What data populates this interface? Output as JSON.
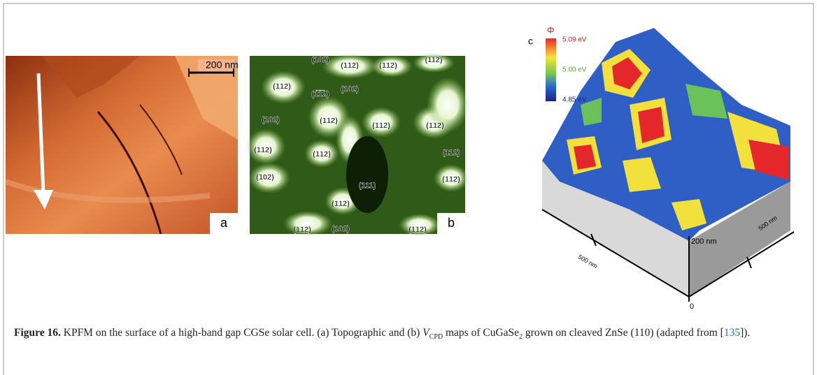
{
  "figure": {
    "panel_a": {
      "scale_bar": "200 nm",
      "label": "a"
    },
    "panel_b": {
      "label": "b",
      "facets": [
        "(102)",
        "(1̅1̅2)",
        "(1̅1̅2)",
        "(112)",
        "(1̅1̅2)",
        "(1̅1̅2)",
        "(102)",
        "(102)",
        "(1̅1̅2)",
        "(1̅1̅2)",
        "(1̅1̅2)",
        "(112)",
        "(1̅1̅2)",
        "(1̅1̅2)",
        "(102)",
        "(111)",
        "(1̅1̅2)",
        "(1̅1̅2)",
        "(1̅1̅2)",
        "(102)",
        "(1̅1̅2)"
      ]
    },
    "panel_c": {
      "label": "c",
      "symbol": "Φ",
      "scale_max": "5.09 eV",
      "scale_mid": "5.00 eV",
      "scale_min": "4.85 eV",
      "height_label": "200 nm",
      "x_label": "500 nm",
      "y_label": "500 nm",
      "origin": "0"
    },
    "caption": {
      "figure_label": "Figure 16.",
      "text_1": "KPFM on the surface of a high-band gap CGSe solar cell. (a) Topographic and (b)",
      "v": "V",
      "v_sub": "CPD",
      "text_2": "maps of CuGaSe",
      "sub_2": "2",
      "text_3": "grown on cleaved ZnSe (110) (adapted from [",
      "ref": "135",
      "text_4": "])."
    }
  }
}
